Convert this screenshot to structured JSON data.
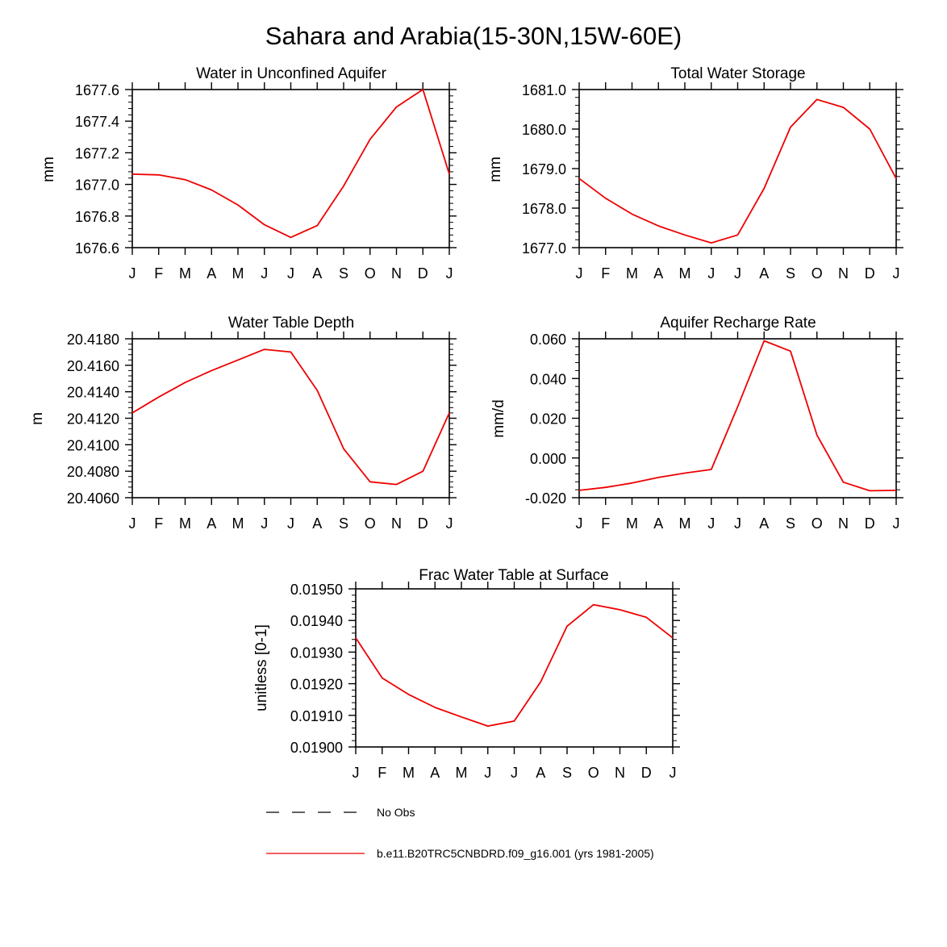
{
  "figure": {
    "title": "Sahara and Arabia(15-30N,15W-60E)",
    "series_color": "#ee0000"
  },
  "legend": {
    "items": [
      {
        "label": "No Obs",
        "style": "dashed",
        "color": "#000000"
      },
      {
        "label": "b.e11.B20TRC5CNBDRD.f09_g16.001 (yrs 1981-2005)",
        "style": "solid",
        "color": "#ee0000"
      }
    ]
  },
  "chart_data": [
    {
      "type": "line",
      "title": "Water in Unconfined Aquifer",
      "ylabel": "mm",
      "xlabel": "",
      "categories": [
        "J",
        "F",
        "M",
        "A",
        "M",
        "J",
        "J",
        "A",
        "S",
        "O",
        "N",
        "D",
        "J"
      ],
      "ylim": [
        1676.6,
        1677.6
      ],
      "yticks": [
        1676.6,
        1676.8,
        1677.0,
        1677.2,
        1677.4,
        1677.6
      ],
      "ytick_labels": [
        "1676.6",
        "1676.8",
        "1677.0",
        "1677.2",
        "1677.4",
        "1677.6"
      ],
      "series": [
        {
          "name": "b.e11.B20TRC5CNBDRD.f09_g16.001 (yrs 1981-2005)",
          "values": [
            1677.065,
            1677.06,
            1677.03,
            1676.965,
            1676.87,
            1676.745,
            1676.665,
            1676.74,
            1676.99,
            1677.285,
            1677.49,
            1677.6,
            1677.065
          ]
        }
      ]
    },
    {
      "type": "line",
      "title": "Total Water Storage",
      "ylabel": "mm",
      "xlabel": "",
      "categories": [
        "J",
        "F",
        "M",
        "A",
        "M",
        "J",
        "J",
        "A",
        "S",
        "O",
        "N",
        "D",
        "J"
      ],
      "ylim": [
        1677.0,
        1681.0
      ],
      "yticks": [
        1677.0,
        1678.0,
        1679.0,
        1680.0,
        1681.0
      ],
      "ytick_labels": [
        "1677.0",
        "1678.0",
        "1679.0",
        "1680.0",
        "1681.0"
      ],
      "series": [
        {
          "name": "b.e11.B20TRC5CNBDRD.f09_g16.001 (yrs 1981-2005)",
          "values": [
            1678.75,
            1678.25,
            1677.85,
            1677.55,
            1677.32,
            1677.12,
            1677.32,
            1678.5,
            1680.05,
            1680.75,
            1680.55,
            1680.0,
            1678.75
          ]
        }
      ]
    },
    {
      "type": "line",
      "title": "Water Table Depth",
      "ylabel": "m",
      "xlabel": "",
      "categories": [
        "J",
        "F",
        "M",
        "A",
        "M",
        "J",
        "J",
        "A",
        "S",
        "O",
        "N",
        "D",
        "J"
      ],
      "ylim": [
        20.406,
        20.418
      ],
      "yticks": [
        20.406,
        20.408,
        20.41,
        20.412,
        20.414,
        20.416,
        20.418
      ],
      "ytick_labels": [
        "20.4060",
        "20.4080",
        "20.4100",
        "20.4120",
        "20.4140",
        "20.4160",
        "20.4180"
      ],
      "series": [
        {
          "name": "b.e11.B20TRC5CNBDRD.f09_g16.001 (yrs 1981-2005)",
          "values": [
            20.4124,
            20.4136,
            20.4147,
            20.4156,
            20.4164,
            20.4172,
            20.417,
            20.4141,
            20.4097,
            20.4072,
            20.407,
            20.408,
            20.4124
          ]
        }
      ]
    },
    {
      "type": "line",
      "title": "Aquifer Recharge Rate",
      "ylabel": "mm/d",
      "xlabel": "",
      "categories": [
        "J",
        "F",
        "M",
        "A",
        "M",
        "J",
        "J",
        "A",
        "S",
        "O",
        "N",
        "D",
        "J"
      ],
      "ylim": [
        -0.02,
        0.06
      ],
      "yticks": [
        -0.02,
        0.0,
        0.02,
        0.04,
        0.06
      ],
      "ytick_labels": [
        "-0.020",
        "0.000",
        "0.020",
        "0.040",
        "0.060"
      ],
      "series": [
        {
          "name": "b.e11.B20TRC5CNBDRD.f09_g16.001 (yrs 1981-2005)",
          "values": [
            -0.0163,
            -0.0148,
            -0.0126,
            -0.0098,
            -0.0076,
            -0.0058,
            0.0258,
            0.059,
            0.0538,
            0.0115,
            -0.0122,
            -0.0165,
            -0.0163
          ]
        }
      ]
    },
    {
      "type": "line",
      "title": "Frac Water Table at Surface",
      "ylabel": "unitless [0-1]",
      "xlabel": "",
      "categories": [
        "J",
        "F",
        "M",
        "A",
        "M",
        "J",
        "J",
        "A",
        "S",
        "O",
        "N",
        "D",
        "J"
      ],
      "ylim": [
        0.019,
        0.0195
      ],
      "yticks": [
        0.019,
        0.0191,
        0.0192,
        0.0193,
        0.0194,
        0.0195
      ],
      "ytick_labels": [
        "0.01900",
        "0.01910",
        "0.01920",
        "0.01930",
        "0.01940",
        "0.01950"
      ],
      "series": [
        {
          "name": "b.e11.B20TRC5CNBDRD.f09_g16.001 (yrs 1981-2005)",
          "values": [
            0.019345,
            0.019218,
            0.019166,
            0.019125,
            0.019095,
            0.019066,
            0.019082,
            0.019206,
            0.019382,
            0.01945,
            0.019434,
            0.01941,
            0.019345
          ]
        }
      ]
    }
  ]
}
